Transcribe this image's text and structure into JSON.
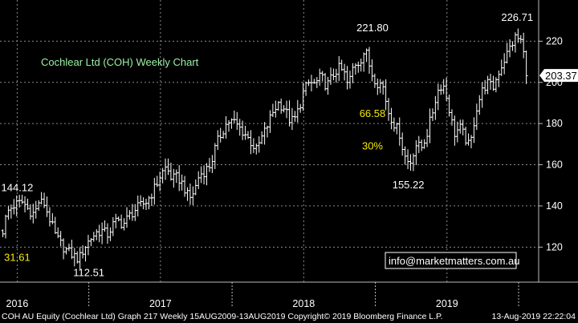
{
  "chart_data": {
    "type": "ohlc",
    "title": "Cochlear Ltd (COH) Weekly Chart",
    "ylim": [
      103,
      240
    ],
    "y_ticks": [
      120,
      140,
      160,
      180,
      200,
      220
    ],
    "x_range": [
      2015.88,
      2019.64
    ],
    "x_ticks": [
      {
        "x": 2016.0,
        "label": "2016"
      },
      {
        "x": 2017.0,
        "label": "2017"
      },
      {
        "x": 2018.0,
        "label": "2018"
      },
      {
        "x": 2019.0,
        "label": "2019"
      }
    ],
    "last_price": 203.37,
    "last_price_label": "203.37",
    "close_points": [
      [
        2015.9,
        128
      ],
      [
        2015.93,
        137
      ],
      [
        2015.97,
        140
      ],
      [
        2016.0,
        141
      ],
      [
        2016.04,
        142
      ],
      [
        2016.08,
        138
      ],
      [
        2016.12,
        136
      ],
      [
        2016.15,
        142
      ],
      [
        2016.19,
        141
      ],
      [
        2016.23,
        133
      ],
      [
        2016.27,
        125
      ],
      [
        2016.31,
        121
      ],
      [
        2016.35,
        118
      ],
      [
        2016.39,
        116
      ],
      [
        2016.43,
        114
      ],
      [
        2016.47,
        120
      ],
      [
        2016.51,
        124
      ],
      [
        2016.55,
        127
      ],
      [
        2016.59,
        128
      ],
      [
        2016.63,
        126
      ],
      [
        2016.67,
        131
      ],
      [
        2016.7,
        133
      ],
      [
        2016.74,
        131
      ],
      [
        2016.78,
        135
      ],
      [
        2016.82,
        138
      ],
      [
        2016.86,
        140
      ],
      [
        2016.9,
        142
      ],
      [
        2016.93,
        145
      ],
      [
        2016.97,
        150
      ],
      [
        2017.0,
        155
      ],
      [
        2017.04,
        159
      ],
      [
        2017.08,
        153
      ],
      [
        2017.12,
        154
      ],
      [
        2017.16,
        150
      ],
      [
        2017.2,
        143
      ],
      [
        2017.24,
        148
      ],
      [
        2017.27,
        155
      ],
      [
        2017.31,
        157
      ],
      [
        2017.35,
        160
      ],
      [
        2017.39,
        170
      ],
      [
        2017.43,
        176
      ],
      [
        2017.47,
        181
      ],
      [
        2017.51,
        181
      ],
      [
        2017.55,
        178
      ],
      [
        2017.59,
        175
      ],
      [
        2017.63,
        171
      ],
      [
        2017.67,
        167
      ],
      [
        2017.7,
        172
      ],
      [
        2017.74,
        178
      ],
      [
        2017.78,
        185
      ],
      [
        2017.82,
        190
      ],
      [
        2017.86,
        188
      ],
      [
        2017.9,
        182
      ],
      [
        2017.93,
        181
      ],
      [
        2017.97,
        188
      ],
      [
        2018.0,
        196
      ],
      [
        2018.04,
        200
      ],
      [
        2018.08,
        199
      ],
      [
        2018.12,
        203
      ],
      [
        2018.16,
        198
      ],
      [
        2018.2,
        203
      ],
      [
        2018.24,
        207
      ],
      [
        2018.28,
        205
      ],
      [
        2018.31,
        198
      ],
      [
        2018.35,
        209
      ],
      [
        2018.39,
        210
      ],
      [
        2018.43,
        216
      ],
      [
        2018.47,
        205
      ],
      [
        2018.51,
        200
      ],
      [
        2018.55,
        199
      ],
      [
        2018.59,
        186
      ],
      [
        2018.63,
        180
      ],
      [
        2018.67,
        175
      ],
      [
        2018.7,
        165
      ],
      [
        2018.74,
        160
      ],
      [
        2018.78,
        170
      ],
      [
        2018.82,
        168
      ],
      [
        2018.86,
        175
      ],
      [
        2018.9,
        186
      ],
      [
        2018.93,
        195
      ],
      [
        2018.97,
        200
      ],
      [
        2019.01,
        189
      ],
      [
        2019.05,
        175
      ],
      [
        2019.09,
        178
      ],
      [
        2019.12,
        174
      ],
      [
        2019.16,
        168
      ],
      [
        2019.2,
        186
      ],
      [
        2019.24,
        195
      ],
      [
        2019.28,
        200
      ],
      [
        2019.32,
        197
      ],
      [
        2019.36,
        205
      ],
      [
        2019.4,
        211
      ],
      [
        2019.44,
        217
      ],
      [
        2019.48,
        222
      ],
      [
        2019.52,
        220
      ],
      [
        2019.56,
        203
      ]
    ],
    "annotations": [
      {
        "text": "144.12",
        "x": 2016.0,
        "y": 144.12,
        "color": "white",
        "position": "above"
      },
      {
        "text": "31.61",
        "x": 2016.0,
        "y": 120,
        "color": "yellow",
        "position": "below"
      },
      {
        "text": "112.51",
        "x": 2016.5,
        "y": 112.51,
        "color": "white",
        "position": "below"
      },
      {
        "text": "221.80",
        "x": 2018.48,
        "y": 221.8,
        "color": "white",
        "position": "above"
      },
      {
        "text": "66.58",
        "x": 2018.48,
        "y": 180,
        "color": "yellow",
        "position": "above"
      },
      {
        "text": "30%",
        "x": 2018.48,
        "y": 174,
        "color": "yellow",
        "position": "below"
      },
      {
        "text": "155.22",
        "x": 2018.73,
        "y": 155.22,
        "color": "white",
        "position": "below"
      },
      {
        "text": "226.71",
        "x": 2019.49,
        "y": 226.71,
        "color": "white",
        "position": "above"
      }
    ],
    "watermark": "info@marketmatters.com.au",
    "footer_left": "COH AU Equity (Cochlear Ltd) Graph 217  Weekly 15AUG2009-13AUG2019  Copyright© 2019 Bloomberg Finance L.P.",
    "footer_right": "13-Aug-2019 22:22:04",
    "colors": {
      "background": "#000000",
      "bars": "#ffffff",
      "grid": "#8a8a8a",
      "title": "#9bf0a6",
      "annotation_yellow": "#f5e90a",
      "watermark_border": "#ffffff",
      "price_tag": "#ffffff"
    }
  }
}
